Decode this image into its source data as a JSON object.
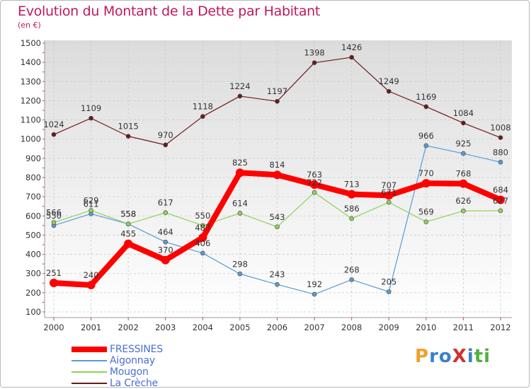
{
  "header": {
    "title": "Evolution du Montant de la Dette par Habitant",
    "subtitle": "(en €)"
  },
  "logo": {
    "text": "ProXiti",
    "letters": [
      "P",
      "r",
      "o",
      "X",
      "i",
      "t",
      "i"
    ],
    "colors": [
      "#f0a030",
      "#3a7fd0",
      "#3a7fd0",
      "#d03030",
      "#3a7fd0",
      "#50b040",
      "#50b040"
    ]
  },
  "chart_data": {
    "type": "line",
    "x": [
      "2000",
      "2001",
      "2002",
      "2003",
      "2004",
      "2005",
      "2006",
      "2007",
      "2008",
      "2009",
      "2010",
      "2011",
      "2012"
    ],
    "ylim": [
      100,
      1500
    ],
    "yticks": [
      100,
      200,
      300,
      400,
      500,
      600,
      700,
      800,
      900,
      1000,
      1100,
      1200,
      1300,
      1400,
      1500
    ],
    "grid": true,
    "legend_position": "bottom-left",
    "series": [
      {
        "name": "La Crèche",
        "color": "#6b1a1a",
        "width": 1.2,
        "values": [
          1024,
          1109,
          1015,
          970,
          1118,
          1224,
          1197,
          1398,
          1426,
          1249,
          1169,
          1084,
          1008
        ],
        "labels": [
          "1024",
          "1109",
          "1015",
          "970",
          "1118",
          "1224",
          "1197",
          "1398",
          "1426",
          "1249",
          "1169",
          "1084",
          "1008"
        ]
      },
      {
        "name": "Aigonnay",
        "color": "#5b9bd5",
        "width": 1.2,
        "values": [
          550,
          611,
          558,
          464,
          406,
          298,
          243,
          192,
          268,
          205,
          966,
          925,
          880
        ],
        "labels": [
          "550",
          "611",
          "558",
          "464",
          "406",
          "298",
          "243",
          "192",
          "268",
          "205",
          "966",
          "925",
          "880"
        ]
      },
      {
        "name": "Mougon",
        "color": "#8fd05a",
        "width": 1.2,
        "values": [
          566,
          629,
          558,
          617,
          550,
          614,
          543,
          722,
          586,
          671,
          569,
          626,
          627
        ],
        "labels": [
          "566",
          "629",
          "558",
          "617",
          "550",
          "614",
          "543",
          "722",
          "586",
          "671",
          "569",
          "626",
          "627"
        ]
      },
      {
        "name": "FRESSINES",
        "color": "#ff0000",
        "width": 8,
        "values": [
          251,
          240,
          455,
          370,
          487,
          825,
          814,
          763,
          713,
          707,
          770,
          768,
          684
        ],
        "labels": [
          "251",
          "240",
          "455",
          "370",
          "487",
          "825",
          "814",
          "763",
          "713",
          "707",
          "770",
          "768",
          "684"
        ]
      }
    ],
    "legend_order": [
      "FRESSINES",
      "Aigonnay",
      "Mougon",
      "La Crèche"
    ]
  }
}
